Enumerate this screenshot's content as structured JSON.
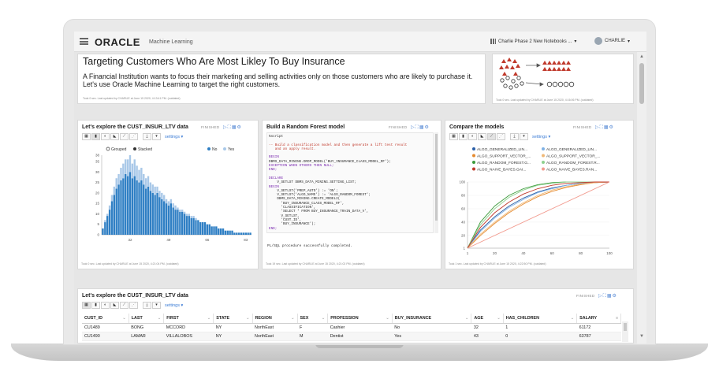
{
  "app": {
    "logo": "ORACLE",
    "logo_sub": "Machine Learning",
    "notebook": "Charlie Phase 2 New Notebooks ...",
    "user": "CHARLIE"
  },
  "title_paragraph": {
    "heading": "Targeting Customers Who Are Most Likley To Buy Insurance",
    "body": "A Financial Institution wants to focus their marketing and selling activities only on those customers who are likely to purchase it. Let's use Oracle Machine Learning to target the right customers.",
    "footer": "Took 0 sec. Last updated by CHARLIE at June 15 2020, 4:13:41 PM. (outdated)"
  },
  "diagram_paragraph": {
    "footer": "Took 0 sec. Last updated by CHARLIE at June 15 2020, 4:16:06 PM. (outdated)"
  },
  "histogram_paragraph": {
    "title": "Let's explore the CUST_INSUR_LTV data",
    "status": "FINISHED",
    "settings": "settings",
    "footer": "Took 0 sec. Last updated by CHARLIE at June 15 2020, 4:21:04 PM. (outdated)"
  },
  "code_paragraph": {
    "title": "Build a Random Forest model",
    "status": "FINISHED",
    "output": "PL/SQL procedure successfully completed.",
    "footer": "Took 19 sec. Last updated by CHARLIE at June 15 2020, 4:21:02 PM. (outdated)",
    "lines": [
      {
        "t": "%script",
        "c": "tx"
      },
      {
        "t": "",
        "c": "tx"
      },
      {
        "t": "-- Build a classification model and then generate a lift test result",
        "c": "cm"
      },
      {
        "t": "   and an apply result.",
        "c": "cm"
      },
      {
        "t": "",
        "c": "tx"
      },
      {
        "t": "BEGIN",
        "c": "kw"
      },
      {
        "t": "DBMS_DATA_MINING.DROP_MODEL('BUY_INSURANCE_CLASS_MODEL_RF');",
        "c": "tx"
      },
      {
        "t": "EXCEPTION WHEN OTHERS THEN NULL;",
        "c": "kw"
      },
      {
        "t": "END;",
        "c": "kw"
      },
      {
        "t": "",
        "c": "tx"
      },
      {
        "t": "DECLARE",
        "c": "kw"
      },
      {
        "t": "    V_SETLST DBMS_DATA_MINING.SETTING_LIST;",
        "c": "tx"
      },
      {
        "t": "BEGIN",
        "c": "kw"
      },
      {
        "t": "    V_SETLST('PREP_AUTO') := 'ON';",
        "c": "tx"
      },
      {
        "t": "    V_SETLST('ALGO_NAME') := 'ALGO_RANDOM_FOREST';",
        "c": "tx"
      },
      {
        "t": "    DBMS_DATA_MINING.CREATE_MODEL2(",
        "c": "tx"
      },
      {
        "t": "      'BUY_INSURANCE_CLASS_MODEL_RF',",
        "c": "tx"
      },
      {
        "t": "      'CLASSIFICATION',",
        "c": "tx"
      },
      {
        "t": "      'SELECT * FROM BUY_INSURANCE_TRAIN_DATA_V',",
        "c": "tx"
      },
      {
        "t": "      V_SETLST,",
        "c": "tx"
      },
      {
        "t": "      'CUST_ID',",
        "c": "tx"
      },
      {
        "t": "      'BUY_INSURANCE');",
        "c": "tx"
      },
      {
        "t": "END;",
        "c": "kw"
      }
    ]
  },
  "compare_paragraph": {
    "title": "Compare the models",
    "status": "FINISHED",
    "settings": "settings",
    "footer": "Took 1 sec. Last updated by CHARLIE at June 15 2020, 4:22:50 PM. (outdated)"
  },
  "table_paragraph": {
    "title": "Let's explore the CUST_INSUR_LTV data",
    "status": "FINISHED",
    "settings": "settings",
    "columns": [
      "CUST_ID",
      "LAST",
      "FIRST",
      "STATE",
      "REGION",
      "SEX",
      "PROFESSION",
      "BUY_INSURANCE",
      "AGE",
      "HAS_CHILDREN",
      "SALARY"
    ],
    "rows": [
      [
        "CU1489",
        "BONG",
        "MCCORD",
        "NY",
        "NorthEast",
        "F",
        "Cashier",
        "No",
        "32",
        "1",
        "61172"
      ],
      [
        "CU1490",
        "LAMAR",
        "VILLALOBOS",
        "NY",
        "NorthEast",
        "M",
        "Dentist",
        "Yes",
        "43",
        "0",
        "63787"
      ]
    ]
  },
  "chart_data": [
    {
      "type": "bar",
      "stacked": true,
      "legend": [
        "Grouped",
        "Stacked",
        "No",
        "Yes"
      ],
      "series": [
        {
          "name": "No",
          "color": "#2f7fc4"
        },
        {
          "name": "Yes",
          "color": "#a9c8e8"
        }
      ],
      "x_ticks": [
        32,
        49,
        66,
        83
      ],
      "y_ticks": [
        0,
        5,
        10,
        15,
        20,
        25,
        30,
        35,
        38
      ],
      "ylim": [
        0,
        38
      ],
      "categories": [
        20,
        21,
        22,
        23,
        24,
        25,
        26,
        27,
        28,
        29,
        30,
        31,
        32,
        33,
        34,
        35,
        36,
        37,
        38,
        39,
        40,
        41,
        42,
        43,
        44,
        45,
        46,
        47,
        48,
        49,
        50,
        51,
        52,
        53,
        54,
        55,
        56,
        57,
        58,
        59,
        60,
        61,
        62,
        63,
        64,
        65,
        66,
        67,
        68,
        69,
        70,
        71,
        72,
        73,
        74,
        75,
        76,
        77,
        78,
        79,
        80,
        81,
        82,
        83,
        84,
        85
      ],
      "values_no": [
        3,
        6,
        9,
        12,
        16,
        19,
        22,
        24,
        26,
        27,
        29,
        28,
        30,
        27,
        28,
        26,
        25,
        26,
        24,
        22,
        23,
        21,
        20,
        19,
        20,
        18,
        17,
        16,
        15,
        14,
        15,
        13,
        12,
        12,
        11,
        11,
        10,
        9,
        9,
        8,
        8,
        7,
        7,
        6,
        6,
        6,
        5,
        5,
        4,
        4,
        4,
        3,
        3,
        3,
        2,
        2,
        2,
        2,
        1,
        1,
        1,
        1,
        1,
        1,
        1,
        1
      ],
      "values_yes": [
        0,
        1,
        1,
        2,
        3,
        4,
        5,
        5,
        6,
        7,
        7,
        8,
        8,
        7,
        8,
        7,
        6,
        6,
        5,
        5,
        5,
        4,
        4,
        4,
        3,
        3,
        3,
        3,
        2,
        2,
        2,
        2,
        2,
        1,
        1,
        1,
        1,
        1,
        1,
        1,
        1,
        1,
        0,
        0,
        0,
        0,
        0,
        0,
        0,
        0,
        0,
        0,
        0,
        0,
        0,
        0,
        0,
        0,
        0,
        0,
        0,
        0,
        0,
        0,
        0,
        0
      ]
    },
    {
      "type": "line",
      "x_ticks": [
        1,
        20,
        40,
        60,
        80,
        100
      ],
      "y_ticks": [
        1,
        20,
        40,
        60,
        80,
        100
      ],
      "xlim": [
        1,
        100
      ],
      "ylim": [
        1,
        100
      ],
      "series": [
        {
          "name": "ALGO_GENERALIZED_LIN...",
          "color": "#2b5fa8",
          "x": [
            1,
            10,
            20,
            30,
            40,
            50,
            60,
            70,
            80,
            90,
            100
          ],
          "y": [
            1,
            28,
            48,
            64,
            76,
            85,
            91,
            95,
            98,
            99,
            100
          ]
        },
        {
          "name": "ALGO_GENERALIZED_LIN...",
          "color": "#7fb2e5",
          "x": [
            1,
            10,
            20,
            30,
            40,
            50,
            60,
            70,
            80,
            90,
            100
          ],
          "y": [
            1,
            26,
            46,
            62,
            74,
            84,
            90,
            95,
            98,
            99,
            100
          ]
        },
        {
          "name": "ALGO_SUPPORT_VECTOR_...",
          "color": "#e58a2e",
          "x": [
            1,
            10,
            20,
            30,
            40,
            50,
            60,
            70,
            80,
            90,
            100
          ],
          "y": [
            1,
            20,
            38,
            54,
            67,
            78,
            86,
            92,
            96,
            99,
            100
          ]
        },
        {
          "name": "ALGO_SUPPORT_VECTOR_...",
          "color": "#f0b978",
          "x": [
            1,
            10,
            20,
            30,
            40,
            50,
            60,
            70,
            80,
            90,
            100
          ],
          "y": [
            1,
            22,
            40,
            56,
            69,
            80,
            88,
            93,
            97,
            99,
            100
          ]
        },
        {
          "name": "ALGO_RANDOM_FOREST.G...",
          "color": "#3a9a3a",
          "x": [
            1,
            10,
            20,
            30,
            40,
            50,
            60,
            70,
            80,
            90,
            100
          ],
          "y": [
            1,
            40,
            64,
            80,
            90,
            96,
            99,
            100,
            100,
            100,
            100
          ]
        },
        {
          "name": "ALGO_RANDOM_FOREST.R...",
          "color": "#8fd18f",
          "x": [
            1,
            10,
            20,
            30,
            40,
            50,
            60,
            70,
            80,
            90,
            100
          ],
          "y": [
            1,
            36,
            60,
            77,
            88,
            95,
            98,
            100,
            100,
            100,
            100
          ]
        },
        {
          "name": "ALGO_NAIVE_BAYES.GAI...",
          "color": "#c0392b",
          "x": [
            1,
            10,
            20,
            30,
            40,
            50,
            60,
            70,
            80,
            90,
            100
          ],
          "y": [
            1,
            32,
            54,
            70,
            82,
            90,
            95,
            98,
            99,
            100,
            100
          ]
        },
        {
          "name": "ALGO_NAIVE_BAYES.RAN...",
          "color": "#f29b8f",
          "x": [
            1,
            100
          ],
          "y": [
            1,
            100
          ]
        }
      ]
    }
  ]
}
